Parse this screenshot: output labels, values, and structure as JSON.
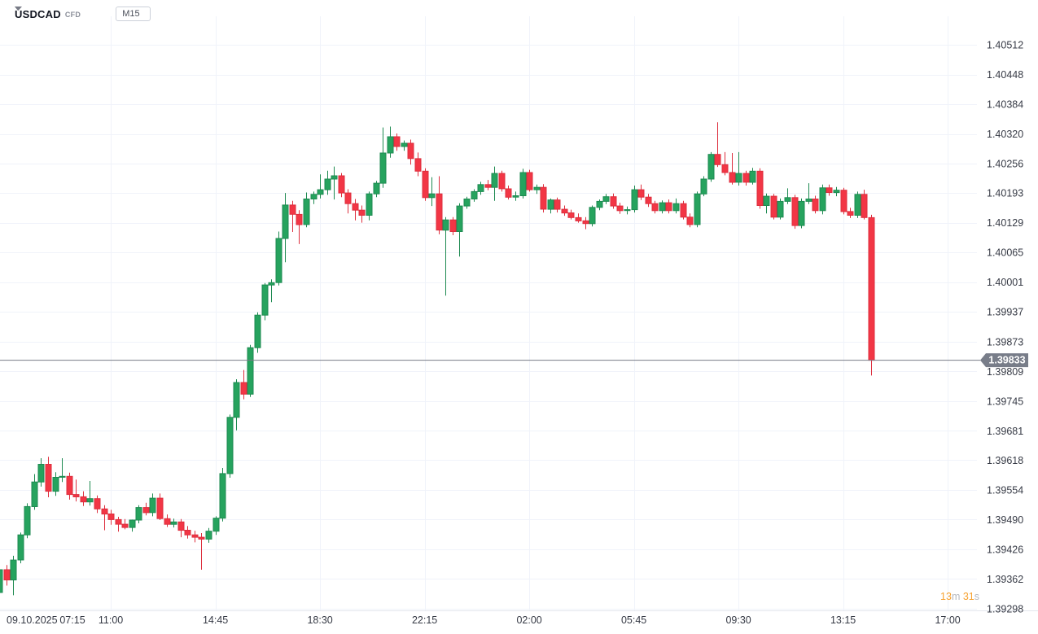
{
  "header": {
    "symbol": "USDCAD",
    "instrument_type": "CFD",
    "timeframe": "M15"
  },
  "countdown": {
    "full_text": "13m 31s",
    "parts": [
      {
        "text": "13",
        "type": "value"
      },
      {
        "text": "m",
        "type": "unit"
      },
      {
        "text": " 31",
        "type": "value"
      },
      {
        "text": "s",
        "type": "unit"
      }
    ]
  },
  "chart_data": {
    "type": "candlestick",
    "symbol": "USDCAD",
    "timeframe": "M15",
    "start": "09.10.2025 07:00",
    "interval_minutes": 15,
    "last_price": "1.39833",
    "y_range": {
      "top_price": 1.40512,
      "bottom_price": 1.39298
    },
    "grid": true,
    "price_axis_ticks": [
      "1.40512",
      "1.40448",
      "1.40384",
      "1.40320",
      "1.40256",
      "1.40193",
      "1.40129",
      "1.40065",
      "1.40001",
      "1.39937",
      "1.39873",
      "1.39809",
      "1.39745",
      "1.39681",
      "1.39618",
      "1.39554",
      "1.39490",
      "1.39426",
      "1.39362",
      "1.39298"
    ],
    "time_axis_labels": [
      {
        "text": "09.10.2025",
        "bar": 1,
        "kind": "date"
      },
      {
        "text": "07:15",
        "bar": 1,
        "kind": "first"
      },
      {
        "text": "11:00",
        "bar": 16
      },
      {
        "text": "14:45",
        "bar": 31
      },
      {
        "text": "18:30",
        "bar": 46
      },
      {
        "text": "22:15",
        "bar": 61
      },
      {
        "text": "02:00",
        "bar": 76
      },
      {
        "text": "05:45",
        "bar": 91
      },
      {
        "text": "09:30",
        "bar": 106
      },
      {
        "text": "13:15",
        "bar": 121
      },
      {
        "text": "17:00",
        "bar": 136
      }
    ],
    "colors": {
      "up_fill": "#26a35e",
      "up_border": "#1e8a51",
      "down_fill": "#f23645",
      "down_border": "#dd2f3e",
      "grid": "#f0f3fa",
      "axis_text": "#363a45",
      "axis_separator": "#e4e7ee",
      "last_price_line": "#787b86",
      "last_price_badge_bg": "#787d89",
      "last_price_badge_text": "#ffffff",
      "countdown_value": "#f7a12e",
      "countdown_unit": "#b5b8bf"
    },
    "candles": [
      [
        1.39333,
        1.39392,
        1.39305,
        1.39382
      ],
      [
        1.39382,
        1.39392,
        1.39348,
        1.3936
      ],
      [
        1.3936,
        1.39412,
        1.39327,
        1.39403
      ],
      [
        1.39403,
        1.39462,
        1.39396,
        1.39457
      ],
      [
        1.39457,
        1.39525,
        1.3945,
        1.39518
      ],
      [
        1.39518,
        1.39588,
        1.39511,
        1.39571
      ],
      [
        1.39571,
        1.39622,
        1.39561,
        1.39609
      ],
      [
        1.39609,
        1.39625,
        1.39538,
        1.39551
      ],
      [
        1.39551,
        1.39592,
        1.39541,
        1.39581
      ],
      [
        1.39581,
        1.39622,
        1.39571,
        1.39583
      ],
      [
        1.39583,
        1.39591,
        1.39533,
        1.39544
      ],
      [
        1.39544,
        1.39576,
        1.39529,
        1.39539
      ],
      [
        1.39539,
        1.39551,
        1.39519,
        1.39528
      ],
      [
        1.39528,
        1.39573,
        1.3952,
        1.39535
      ],
      [
        1.39535,
        1.39542,
        1.39504,
        1.39513
      ],
      [
        1.39513,
        1.39521,
        1.39467,
        1.39502
      ],
      [
        1.39502,
        1.39511,
        1.39479,
        1.3949
      ],
      [
        1.3949,
        1.39496,
        1.39464,
        1.3948
      ],
      [
        1.3948,
        1.39491,
        1.39469,
        1.39473
      ],
      [
        1.39473,
        1.3949,
        1.39464,
        1.39489
      ],
      [
        1.39489,
        1.39521,
        1.39482,
        1.39516
      ],
      [
        1.39516,
        1.39526,
        1.39499,
        1.39505
      ],
      [
        1.39505,
        1.39546,
        1.39497,
        1.39536
      ],
      [
        1.39536,
        1.39546,
        1.39489,
        1.39492
      ],
      [
        1.39492,
        1.39501,
        1.39474,
        1.3948
      ],
      [
        1.3948,
        1.39492,
        1.39473,
        1.39485
      ],
      [
        1.39485,
        1.39491,
        1.39452,
        1.39467
      ],
      [
        1.39467,
        1.39476,
        1.39449,
        1.39457
      ],
      [
        1.39457,
        1.39466,
        1.39441,
        1.39452
      ],
      [
        1.39452,
        1.39461,
        1.39382,
        1.39448
      ],
      [
        1.39448,
        1.39472,
        1.3944,
        1.39465
      ],
      [
        1.39465,
        1.39497,
        1.39457,
        1.39493
      ],
      [
        1.39493,
        1.39601,
        1.39486,
        1.39589
      ],
      [
        1.39589,
        1.39716,
        1.3958,
        1.3971
      ],
      [
        1.3971,
        1.39792,
        1.39682,
        1.39785
      ],
      [
        1.39785,
        1.39812,
        1.39749,
        1.3976
      ],
      [
        1.3976,
        1.39866,
        1.39754,
        1.3986
      ],
      [
        1.3986,
        1.39936,
        1.39849,
        1.3993
      ],
      [
        1.3993,
        1.39999,
        1.39919,
        1.39995
      ],
      [
        1.39995,
        1.40007,
        1.39958,
        1.4
      ],
      [
        1.4,
        1.4011,
        1.39994,
        1.40095
      ],
      [
        1.40095,
        1.40193,
        1.40044,
        1.40167
      ],
      [
        1.40167,
        1.40176,
        1.40109,
        1.40147
      ],
      [
        1.40147,
        1.40156,
        1.40083,
        1.40125
      ],
      [
        1.40125,
        1.40194,
        1.40119,
        1.4018
      ],
      [
        1.4018,
        1.40196,
        1.40169,
        1.4019
      ],
      [
        1.4019,
        1.40233,
        1.40181,
        1.402
      ],
      [
        1.402,
        1.40241,
        1.40189,
        1.40223
      ],
      [
        1.40223,
        1.4025,
        1.40179,
        1.4023
      ],
      [
        1.4023,
        1.40236,
        1.40184,
        1.40193
      ],
      [
        1.40193,
        1.40201,
        1.40149,
        1.4017
      ],
      [
        1.4017,
        1.4018,
        1.40134,
        1.40156
      ],
      [
        1.40156,
        1.40166,
        1.40129,
        1.40145
      ],
      [
        1.40145,
        1.40196,
        1.40134,
        1.40191
      ],
      [
        1.40191,
        1.40219,
        1.40184,
        1.40214
      ],
      [
        1.40214,
        1.40334,
        1.40204,
        1.40279
      ],
      [
        1.40279,
        1.40336,
        1.40269,
        1.40314
      ],
      [
        1.40314,
        1.40321,
        1.40284,
        1.40293
      ],
      [
        1.40293,
        1.40306,
        1.40284,
        1.403
      ],
      [
        1.403,
        1.40308,
        1.40254,
        1.40267
      ],
      [
        1.40267,
        1.4028,
        1.40229,
        1.4024
      ],
      [
        1.4024,
        1.40246,
        1.40176,
        1.40183
      ],
      [
        1.40183,
        1.40227,
        1.40165,
        1.40191
      ],
      [
        1.40191,
        1.40229,
        1.40104,
        1.40113
      ],
      [
        1.40113,
        1.40141,
        1.39972,
        1.40135
      ],
      [
        1.40135,
        1.40141,
        1.40102,
        1.4011
      ],
      [
        1.4011,
        1.40171,
        1.40056,
        1.40165
      ],
      [
        1.40165,
        1.40185,
        1.40159,
        1.4018
      ],
      [
        1.4018,
        1.40201,
        1.40174,
        1.40196
      ],
      [
        1.40196,
        1.40217,
        1.40189,
        1.40211
      ],
      [
        1.40211,
        1.40221,
        1.40199,
        1.40205
      ],
      [
        1.40205,
        1.4025,
        1.40176,
        1.40235
      ],
      [
        1.40235,
        1.40241,
        1.40196,
        1.40202
      ],
      [
        1.40202,
        1.40209,
        1.40179,
        1.40184
      ],
      [
        1.40184,
        1.40196,
        1.40176,
        1.40187
      ],
      [
        1.40187,
        1.40245,
        1.40181,
        1.40237
      ],
      [
        1.40237,
        1.40243,
        1.40196,
        1.402
      ],
      [
        1.402,
        1.40211,
        1.40191,
        1.40205
      ],
      [
        1.40205,
        1.40212,
        1.40151,
        1.40158
      ],
      [
        1.40158,
        1.40181,
        1.40149,
        1.40178
      ],
      [
        1.40178,
        1.40183,
        1.40151,
        1.40158
      ],
      [
        1.40158,
        1.40166,
        1.40144,
        1.4015
      ],
      [
        1.4015,
        1.40157,
        1.40136,
        1.4014
      ],
      [
        1.4014,
        1.40149,
        1.40129,
        1.40133
      ],
      [
        1.40133,
        1.40141,
        1.40115,
        1.40127
      ],
      [
        1.40127,
        1.40166,
        1.40121,
        1.40162
      ],
      [
        1.40162,
        1.40179,
        1.40156,
        1.40175
      ],
      [
        1.40175,
        1.40191,
        1.40169,
        1.40185
      ],
      [
        1.40185,
        1.40192,
        1.40159,
        1.40165
      ],
      [
        1.40165,
        1.40172,
        1.40148,
        1.40155
      ],
      [
        1.40155,
        1.40164,
        1.40147,
        1.40157
      ],
      [
        1.40157,
        1.40209,
        1.40151,
        1.402
      ],
      [
        1.402,
        1.40211,
        1.40178,
        1.40184
      ],
      [
        1.40184,
        1.40191,
        1.40163,
        1.4017
      ],
      [
        1.4017,
        1.40176,
        1.40149,
        1.40155
      ],
      [
        1.40155,
        1.40177,
        1.40149,
        1.40172
      ],
      [
        1.40172,
        1.40179,
        1.40149,
        1.40155
      ],
      [
        1.40155,
        1.40181,
        1.40149,
        1.4017
      ],
      [
        1.4017,
        1.40176,
        1.40136,
        1.40141
      ],
      [
        1.40141,
        1.40149,
        1.40119,
        1.40125
      ],
      [
        1.40125,
        1.40196,
        1.40119,
        1.40191
      ],
      [
        1.40191,
        1.40229,
        1.40186,
        1.40223
      ],
      [
        1.40223,
        1.40281,
        1.40217,
        1.40276
      ],
      [
        1.40276,
        1.40345,
        1.40249,
        1.40254
      ],
      [
        1.40254,
        1.40281,
        1.40231,
        1.40237
      ],
      [
        1.40237,
        1.40279,
        1.40211,
        1.40216
      ],
      [
        1.40216,
        1.40281,
        1.40209,
        1.40235
      ],
      [
        1.40235,
        1.40241,
        1.40209,
        1.40216
      ],
      [
        1.40216,
        1.40247,
        1.40211,
        1.4024
      ],
      [
        1.4024,
        1.40246,
        1.40159,
        1.40166
      ],
      [
        1.40166,
        1.40192,
        1.40149,
        1.40186
      ],
      [
        1.40186,
        1.40191,
        1.40136,
        1.40141
      ],
      [
        1.40141,
        1.40181,
        1.40136,
        1.40175
      ],
      [
        1.40175,
        1.40203,
        1.40169,
        1.40183
      ],
      [
        1.40183,
        1.40189,
        1.40116,
        1.40123
      ],
      [
        1.40123,
        1.40181,
        1.40117,
        1.40175
      ],
      [
        1.40175,
        1.40214,
        1.40169,
        1.4018
      ],
      [
        1.4018,
        1.40187,
        1.40149,
        1.40155
      ],
      [
        1.40155,
        1.40211,
        1.40147,
        1.40204
      ],
      [
        1.40204,
        1.40211,
        1.40187,
        1.40194
      ],
      [
        1.40194,
        1.40206,
        1.40186,
        1.40199
      ],
      [
        1.40199,
        1.40204,
        1.40147,
        1.40153
      ],
      [
        1.40153,
        1.40161,
        1.40139,
        1.40145
      ],
      [
        1.40145,
        1.40196,
        1.40139,
        1.4019
      ],
      [
        1.4019,
        1.402,
        1.40136,
        1.4014
      ],
      [
        1.4014,
        1.40146,
        1.398,
        1.39833
      ]
    ]
  }
}
